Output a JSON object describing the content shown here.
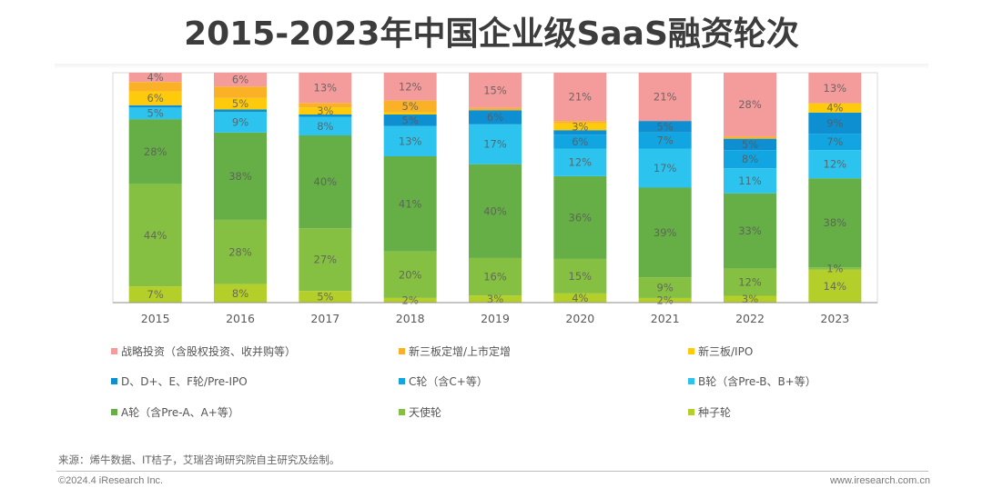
{
  "chart_data": {
    "type": "bar",
    "stacked": true,
    "title": "2015-2023年中国企业级SaaS融资轮次",
    "xlabel": "",
    "ylabel": "",
    "ylim": [
      0,
      100
    ],
    "grid": false,
    "legend_position": "bottom",
    "categories": [
      "2015",
      "2016",
      "2017",
      "2018",
      "2019",
      "2020",
      "2021",
      "2022",
      "2023"
    ],
    "series": [
      {
        "name": "种子轮",
        "color": "#b5cf2a",
        "values": [
          7,
          8,
          5,
          2,
          3,
          4,
          2,
          3,
          14
        ]
      },
      {
        "name": "天使轮",
        "color": "#86c043",
        "values": [
          44,
          28,
          27,
          20,
          16,
          15,
          9,
          12,
          1
        ]
      },
      {
        "name": "A轮（含Pre-A、A+等）",
        "color": "#66ae46",
        "values": [
          28,
          38,
          40,
          41,
          40,
          36,
          39,
          33,
          38
        ]
      },
      {
        "name": "B轮（含Pre-B、B+等）",
        "color": "#2cc3ee",
        "values": [
          5,
          9,
          8,
          13,
          17,
          12,
          17,
          11,
          12
        ]
      },
      {
        "name": "C轮（含C+等）",
        "color": "#11a5e2",
        "values": [
          0,
          0,
          0,
          0,
          0,
          6,
          7,
          8,
          7
        ]
      },
      {
        "name": "D、D+、E、F轮/Pre-IPO",
        "color": "#0d8fd2",
        "values": [
          1,
          1,
          1,
          5,
          6,
          2,
          5,
          5,
          9
        ]
      },
      {
        "name": "新三板/IPO",
        "color": "#fdcb0b",
        "values": [
          6,
          5,
          3,
          1,
          0,
          3,
          0,
          0,
          4
        ]
      },
      {
        "name": "新三板定增/上市定增",
        "color": "#fbb125",
        "values": [
          4,
          5,
          2,
          5,
          1,
          1,
          0,
          1,
          0
        ]
      },
      {
        "name": "战略投资（含股权投资、收并购等）",
        "color": "#f49b9b",
        "values": [
          4,
          6,
          13,
          12,
          15,
          21,
          21,
          28,
          13
        ]
      }
    ],
    "data_labels": [
      [
        "7%",
        "44%",
        "28%",
        "5%",
        "",
        "",
        "6%",
        "",
        "4%"
      ],
      [
        "8%",
        "28%",
        "38%",
        "9%",
        "",
        "",
        "5%",
        "",
        "6%"
      ],
      [
        "5%",
        "27%",
        "40%",
        "8%",
        "",
        "",
        "3%",
        "",
        "13%"
      ],
      [
        "2%",
        "20%",
        "41%",
        "13%",
        "",
        "5%",
        "",
        "5%",
        "12%"
      ],
      [
        "3%",
        "16%",
        "40%",
        "17%",
        "",
        "6%",
        "",
        "",
        "15%"
      ],
      [
        "4%",
        "15%",
        "36%",
        "12%",
        "6%",
        "",
        "3%",
        "",
        "21%"
      ],
      [
        "2%",
        "9%",
        "39%",
        "17%",
        "7%",
        "5%",
        "",
        "",
        "21%"
      ],
      [
        "3%",
        "12%",
        "33%",
        "11%",
        "8%",
        "5%",
        "",
        "",
        "28%"
      ],
      [
        "14%",
        "1%",
        "38%",
        "12%",
        "7%",
        "9%",
        "4%",
        "",
        "13%"
      ]
    ]
  },
  "legend": [
    {
      "label": "战略投资（含股权投资、收并购等）",
      "color": "#f49b9b"
    },
    {
      "label": "新三板定增/上市定增",
      "color": "#fbb125"
    },
    {
      "label": "新三板/IPO",
      "color": "#fdcb0b"
    },
    {
      "label": "D、D+、E、F轮/Pre-IPO",
      "color": "#0d8fd2"
    },
    {
      "label": "C轮（含C+等）",
      "color": "#11a5e2"
    },
    {
      "label": "B轮（含Pre-B、B+等）",
      "color": "#2cc3ee"
    },
    {
      "label": "A轮（含Pre-A、A+等）",
      "color": "#66ae46"
    },
    {
      "label": "天使轮",
      "color": "#86c043"
    },
    {
      "label": "种子轮",
      "color": "#b5cf2a"
    }
  ],
  "footer": {
    "source": "来源：烯牛数据、IT桔子，艾瑞咨询研究院自主研究及绘制。",
    "copyright": "©2024.4 iResearch Inc.",
    "website": "www.iresearch.com.cn"
  }
}
